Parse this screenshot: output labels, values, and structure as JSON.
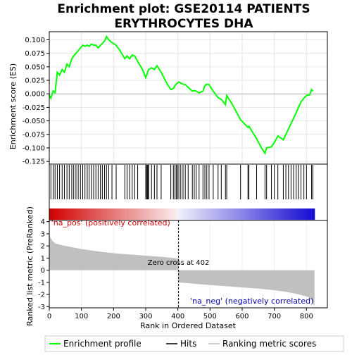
{
  "chart_data": {
    "type": "line",
    "title_lines": [
      "Enrichment plot: GSE20114 PATIENTS",
      "ERYTHROCYTES DHA"
    ],
    "xlabel": "Rank in Ordered Dataset",
    "ylabel_top": "Enrichment score (ES)",
    "ylabel_bottom": "Ranked list metric (PreRanked)",
    "xlim": [
      0,
      865
    ],
    "x_ticks": [
      0,
      100,
      200,
      300,
      400,
      500,
      600,
      700,
      800
    ],
    "es_ylim": [
      -0.13,
      0.115
    ],
    "es_ticks": [
      0.1,
      0.075,
      0.05,
      0.025,
      0.0,
      -0.025,
      -0.05,
      -0.075,
      -0.1,
      -0.125
    ],
    "es_tick_labels": [
      "0.100",
      "0.075",
      "0.050",
      "0.025",
      "0.000",
      "-0.025",
      "-0.050",
      "-0.075",
      "-0.100",
      "-0.125"
    ],
    "metric_ylim": [
      -3.1,
      4.1
    ],
    "metric_ticks": [
      4,
      3,
      2,
      1,
      0,
      -1,
      -2,
      -3
    ],
    "zero_cross_rank": 402,
    "zero_cross_label": "Zero cross at 402",
    "pos_label": "'na_pos' (positively correlated)",
    "neg_label": "'na_neg' (negatively correlated)",
    "n_ranks": 825,
    "legend": [
      "Enrichment profile",
      "Hits",
      "Ranking metric scores"
    ],
    "colors": {
      "es_line": "#00ff00",
      "hits": "#000000",
      "metric_fill": "#c0c0c0",
      "pos_text": "#cc0000",
      "neg_text": "#0000aa",
      "zero_line": "#000000"
    },
    "hits": [
      5,
      12,
      18,
      25,
      32,
      40,
      47,
      55,
      62,
      70,
      76,
      83,
      90,
      97,
      104,
      111,
      118,
      124,
      131,
      138,
      145,
      152,
      159,
      165,
      172,
      178,
      185,
      195,
      208,
      235,
      242,
      250,
      258,
      266,
      275,
      300,
      303,
      305,
      307,
      309,
      318,
      327,
      335,
      348,
      378,
      386,
      391,
      395,
      399,
      403,
      409,
      416,
      423,
      432,
      445,
      451,
      457,
      466,
      478,
      484,
      490,
      497,
      510,
      525,
      535,
      548,
      552,
      595,
      618,
      621,
      645,
      671,
      676,
      691,
      700,
      711,
      728,
      736,
      744,
      752,
      760,
      768,
      775,
      783,
      792,
      800,
      816,
      820
    ],
    "es_profile": [
      [
        0,
        -0.002
      ],
      [
        5,
        -0.008
      ],
      [
        12,
        0.005
      ],
      [
        18,
        0.002
      ],
      [
        25,
        0.04
      ],
      [
        32,
        0.035
      ],
      [
        40,
        0.045
      ],
      [
        47,
        0.04
      ],
      [
        55,
        0.055
      ],
      [
        62,
        0.05
      ],
      [
        70,
        0.065
      ],
      [
        76,
        0.07
      ],
      [
        83,
        0.075
      ],
      [
        90,
        0.08
      ],
      [
        97,
        0.085
      ],
      [
        104,
        0.09
      ],
      [
        111,
        0.088
      ],
      [
        118,
        0.09
      ],
      [
        124,
        0.088
      ],
      [
        131,
        0.092
      ],
      [
        138,
        0.09
      ],
      [
        145,
        0.09
      ],
      [
        152,
        0.085
      ],
      [
        159,
        0.09
      ],
      [
        165,
        0.093
      ],
      [
        172,
        0.098
      ],
      [
        178,
        0.106
      ],
      [
        185,
        0.1
      ],
      [
        195,
        0.095
      ],
      [
        208,
        0.09
      ],
      [
        220,
        0.08
      ],
      [
        235,
        0.065
      ],
      [
        242,
        0.07
      ],
      [
        250,
        0.065
      ],
      [
        258,
        0.072
      ],
      [
        266,
        0.07
      ],
      [
        275,
        0.06
      ],
      [
        290,
        0.045
      ],
      [
        300,
        0.03
      ],
      [
        303,
        0.035
      ],
      [
        305,
        0.038
      ],
      [
        307,
        0.042
      ],
      [
        309,
        0.045
      ],
      [
        318,
        0.048
      ],
      [
        327,
        0.045
      ],
      [
        335,
        0.052
      ],
      [
        348,
        0.04
      ],
      [
        365,
        0.02
      ],
      [
        378,
        0.008
      ],
      [
        386,
        0.01
      ],
      [
        391,
        0.015
      ],
      [
        395,
        0.018
      ],
      [
        399,
        0.02
      ],
      [
        403,
        0.022
      ],
      [
        409,
        0.02
      ],
      [
        416,
        0.018
      ],
      [
        423,
        0.017
      ],
      [
        432,
        0.012
      ],
      [
        445,
        0.005
      ],
      [
        451,
        0.006
      ],
      [
        457,
        0.005
      ],
      [
        466,
        0.002
      ],
      [
        478,
        0.005
      ],
      [
        484,
        0.015
      ],
      [
        490,
        0.018
      ],
      [
        497,
        0.017
      ],
      [
        510,
        0.005
      ],
      [
        525,
        -0.007
      ],
      [
        535,
        -0.01
      ],
      [
        548,
        -0.02
      ],
      [
        552,
        -0.003
      ],
      [
        570,
        -0.02
      ],
      [
        595,
        -0.048
      ],
      [
        618,
        -0.062
      ],
      [
        621,
        -0.06
      ],
      [
        645,
        -0.083
      ],
      [
        660,
        -0.1
      ],
      [
        671,
        -0.11
      ],
      [
        676,
        -0.1
      ],
      [
        691,
        -0.098
      ],
      [
        700,
        -0.09
      ],
      [
        711,
        -0.078
      ],
      [
        728,
        -0.085
      ],
      [
        736,
        -0.075
      ],
      [
        744,
        -0.065
      ],
      [
        752,
        -0.055
      ],
      [
        760,
        -0.045
      ],
      [
        768,
        -0.035
      ],
      [
        775,
        -0.025
      ],
      [
        783,
        -0.015
      ],
      [
        792,
        -0.008
      ],
      [
        800,
        -0.003
      ],
      [
        810,
        -0.002
      ],
      [
        816,
        0.008
      ],
      [
        820,
        0.005
      ]
    ],
    "metric_profile": [
      [
        0,
        3.0
      ],
      [
        3,
        2.7
      ],
      [
        10,
        2.4
      ],
      [
        20,
        2.2
      ],
      [
        40,
        2.05
      ],
      [
        60,
        1.95
      ],
      [
        80,
        1.85
      ],
      [
        100,
        1.75
      ],
      [
        150,
        1.55
      ],
      [
        200,
        1.4
      ],
      [
        250,
        1.3
      ],
      [
        300,
        1.2
      ],
      [
        350,
        1.1
      ],
      [
        380,
        1.02
      ],
      [
        401,
        0.96
      ],
      [
        402,
        -0.95
      ],
      [
        403,
        -1.0
      ],
      [
        450,
        -1.12
      ],
      [
        500,
        -1.22
      ],
      [
        550,
        -1.32
      ],
      [
        600,
        -1.42
      ],
      [
        650,
        -1.52
      ],
      [
        700,
        -1.65
      ],
      [
        740,
        -1.8
      ],
      [
        770,
        -1.95
      ],
      [
        790,
        -2.1
      ],
      [
        805,
        -2.2
      ],
      [
        812,
        -2.35
      ],
      [
        818,
        -2.55
      ],
      [
        822,
        -2.85
      ],
      [
        825,
        -2.95
      ]
    ]
  }
}
